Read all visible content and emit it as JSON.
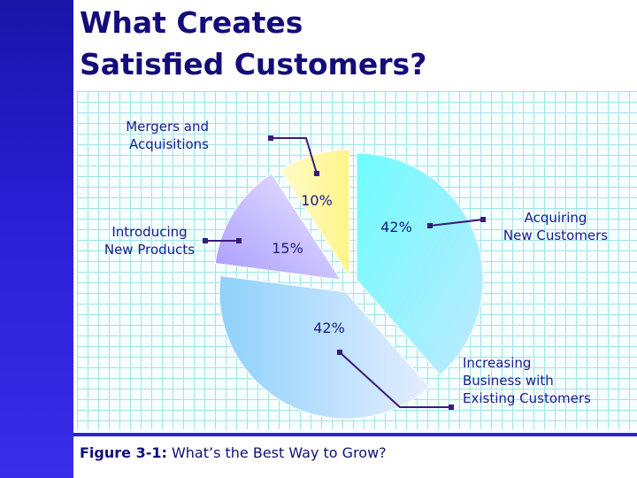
{
  "slide": {
    "title": "What Creates\nSatisfied Customers?",
    "caption_label": "Figure 3-1:",
    "caption_text": " What’s the Best Way to Grow?"
  },
  "chart_data": {
    "type": "pie",
    "slices": [
      {
        "name": "Mergers and Acquisitions",
        "label_lines": [
          "Mergers and",
          "Acquisitions"
        ],
        "value": 10,
        "value_label": "10%",
        "color": "#fffaa6"
      },
      {
        "name": "Acquiring New Customers",
        "label_lines": [
          "Acquiring",
          "New Customers"
        ],
        "value": 42,
        "value_label": "42%",
        "color": "#5cf2f4"
      },
      {
        "name": "Increasing Business with Existing Customers",
        "label_lines": [
          "Increasing",
          "Business with",
          "Existing Customers"
        ],
        "value": 42,
        "value_label": "42%",
        "color": "#a7d6ff"
      },
      {
        "name": "Introducing New Products",
        "label_lines": [
          "Introducing",
          "New Products"
        ],
        "value": 15,
        "value_label": "15%",
        "color": "#c8b2ff"
      }
    ],
    "legend": "none",
    "grid": true
  }
}
